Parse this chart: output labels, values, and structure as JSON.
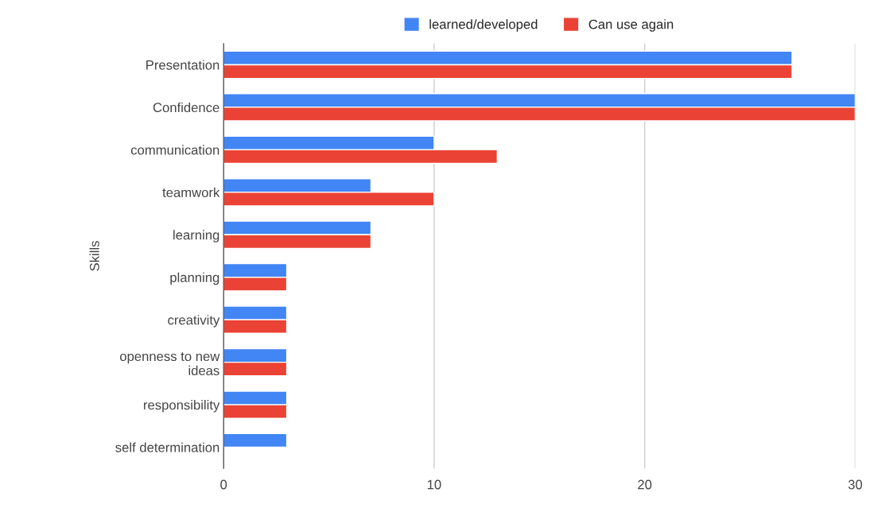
{
  "chart_data": {
    "type": "bar",
    "orientation": "horizontal",
    "ylabel": "Skills",
    "categories": [
      "Presentation",
      "Confidence",
      "communication",
      "teamwork",
      "learning",
      "planning",
      "creativity",
      "openness to new\nideas",
      "responsibility",
      "self determination"
    ],
    "series": [
      {
        "name": "learned/developed",
        "color": "#4285f4",
        "values": [
          27,
          30,
          10,
          7,
          7,
          3,
          3,
          3,
          3,
          3
        ]
      },
      {
        "name": "Can use again",
        "color": "#ea4335",
        "values": [
          27,
          30,
          13,
          10,
          7,
          3,
          3,
          3,
          3,
          null
        ]
      }
    ],
    "xlim": [
      0,
      30
    ],
    "xticks": [
      0,
      10,
      20,
      30
    ],
    "grid": "x",
    "legend": "top"
  }
}
